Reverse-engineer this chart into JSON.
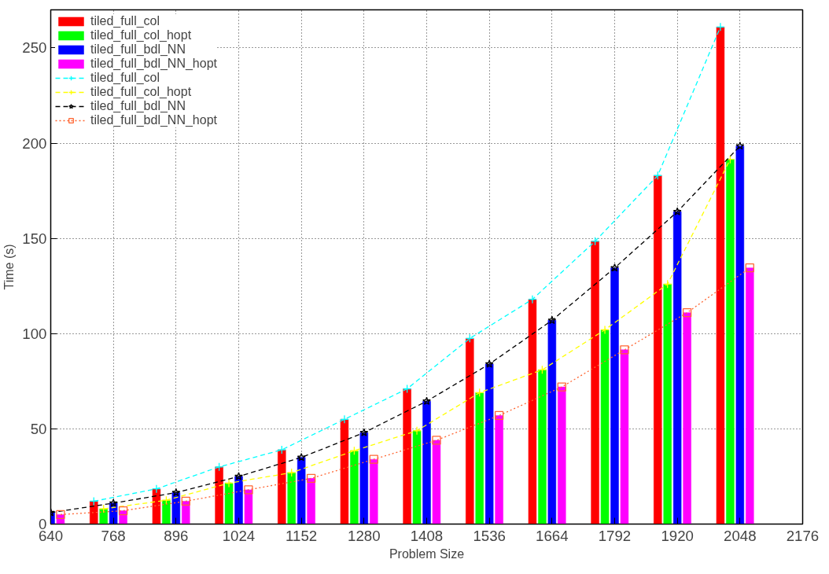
{
  "chart_data": {
    "type": "bar",
    "xlabel": "Problem Size",
    "ylabel": "Time (s)",
    "xlim": [
      640,
      2176
    ],
    "xticks": [
      640,
      768,
      896,
      1024,
      1152,
      1280,
      1408,
      1536,
      1664,
      1792,
      1920,
      2048,
      2176
    ],
    "ylim": [
      0,
      270
    ],
    "yticks": [
      0,
      50,
      100,
      150,
      200,
      250
    ],
    "grid": true,
    "legend": "top left",
    "series": [
      {
        "name": "tiled_full_col",
        "color": "#ff0000",
        "x": [
          728,
          856,
          984,
          1112,
          1240,
          1368,
          1496,
          1624,
          1752,
          1880,
          2008
        ],
        "values": [
          12,
          18.5,
          30,
          39,
          55,
          71,
          97.5,
          118,
          148.5,
          183,
          261
        ]
      },
      {
        "name": "tiled_full_col_hopt",
        "color": "#00ff00",
        "x": [
          748,
          876,
          1004,
          1132,
          1260,
          1388,
          1516,
          1644,
          1772,
          1900,
          2028
        ],
        "values": [
          8,
          12.5,
          21.5,
          27,
          38.5,
          49,
          69,
          81,
          102,
          126,
          191.5
        ]
      },
      {
        "name": "tiled_full_bdl_NN",
        "color": "#0000ff",
        "x": [
          640,
          768,
          896,
          1024,
          1152,
          1280,
          1408,
          1536,
          1664,
          1792,
          1920,
          2048
        ],
        "values": [
          6,
          11,
          16.5,
          25,
          35,
          48,
          64.5,
          84,
          107,
          134.5,
          164,
          198.5
        ]
      },
      {
        "name": "tiled_full_bdl_NN_hopt",
        "color": "#ff00ff",
        "x": [
          660,
          788,
          916,
          1044,
          1172,
          1300,
          1428,
          1556,
          1684,
          1812,
          1940,
          2068
        ],
        "values": [
          5,
          7,
          12,
          18,
          24,
          34,
          44,
          57,
          72,
          91.5,
          111,
          134.5
        ]
      },
      {
        "name": "tiled_full_col",
        "type": "line",
        "color": "#00ffff",
        "marker": "cross",
        "line_style": "dashed",
        "x": [
          728,
          856,
          984,
          1112,
          1240,
          1368,
          1496,
          1624,
          1752,
          1880,
          2008
        ],
        "values": [
          12,
          18.5,
          30,
          39,
          55,
          71,
          97.5,
          118,
          148.5,
          183,
          261
        ]
      },
      {
        "name": "tiled_full_col_hopt",
        "type": "line",
        "color": "#ffff00",
        "marker": "cross",
        "line_style": "dashed",
        "x": [
          748,
          876,
          1004,
          1132,
          1260,
          1388,
          1516,
          1644,
          1772,
          1900,
          2028
        ],
        "values": [
          8,
          12.5,
          21.5,
          27,
          38.5,
          49,
          69,
          81,
          102,
          126,
          191.5
        ]
      },
      {
        "name": "tiled_full_bdl_NN",
        "type": "line",
        "color": "#000000",
        "marker": "star",
        "line_style": "dashed",
        "x": [
          640,
          768,
          896,
          1024,
          1152,
          1280,
          1408,
          1536,
          1664,
          1792,
          1920,
          2048
        ],
        "values": [
          6,
          11,
          16.5,
          25,
          35,
          48,
          64.5,
          84,
          107,
          134.5,
          164,
          198.5
        ]
      },
      {
        "name": "tiled_full_bdl_NN_hopt",
        "type": "line",
        "color": "#ff6633",
        "marker": "square",
        "line_style": "dotted",
        "x": [
          660,
          788,
          916,
          1044,
          1172,
          1300,
          1428,
          1556,
          1684,
          1812,
          1940,
          2068
        ],
        "values": [
          5,
          7,
          12,
          18,
          24,
          34,
          44,
          57,
          72,
          91.5,
          111,
          134.5
        ]
      }
    ]
  }
}
